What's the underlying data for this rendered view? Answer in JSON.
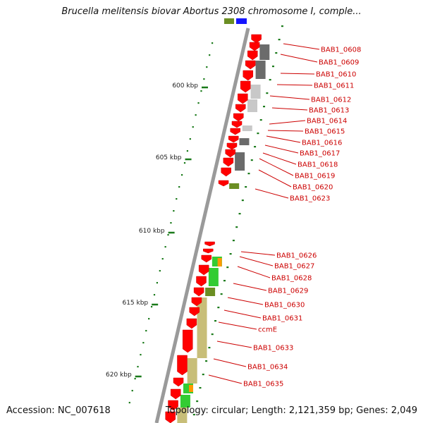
{
  "title": "Brucella melitensis biovar Abortus 2308 chromosome I, comple...",
  "footer": {
    "accession": "Accession: NC_007618",
    "topology": "Topology: circular; Length: 2,121,359 bp; Genes: 2,049"
  },
  "scale_labels": [
    "600 kbp",
    "605 kbp",
    "610 kbp",
    "615 kbp",
    "620 kbp"
  ],
  "genes": [
    "BAB1_0608",
    "BAB1_0609",
    "BAB1_0610",
    "BAB1_0611",
    "BAB1_0612",
    "BAB1_0613",
    "BAB1_0614",
    "BAB1_0615",
    "BAB1_0616",
    "BAB1_0617",
    "BAB1_0618",
    "BAB1_0619",
    "BAB1_0620",
    "BAB1_0623",
    "BAB1_0626",
    "BAB1_0627",
    "BAB1_0628",
    "BAB1_0629",
    "BAB1_0630",
    "BAB1_0631",
    "ccmE",
    "BAB1_0633",
    "BAB1_0634",
    "BAB1_0635"
  ],
  "colors": {
    "backbone": "#9a9a9a",
    "cds_arrow": "#ff0000",
    "gene_label": "#cc0000",
    "scale_tick": "#1a7a1a",
    "cog_dark_gray": "#6b6b6b",
    "cog_light_gray": "#c8c8c8",
    "cog_khaki": "#c8be78",
    "cog_green": "#33cc33",
    "cog_olive": "#6b8e23",
    "cog_orange": "#ff9900",
    "cog_blue": "#1515ff"
  }
}
